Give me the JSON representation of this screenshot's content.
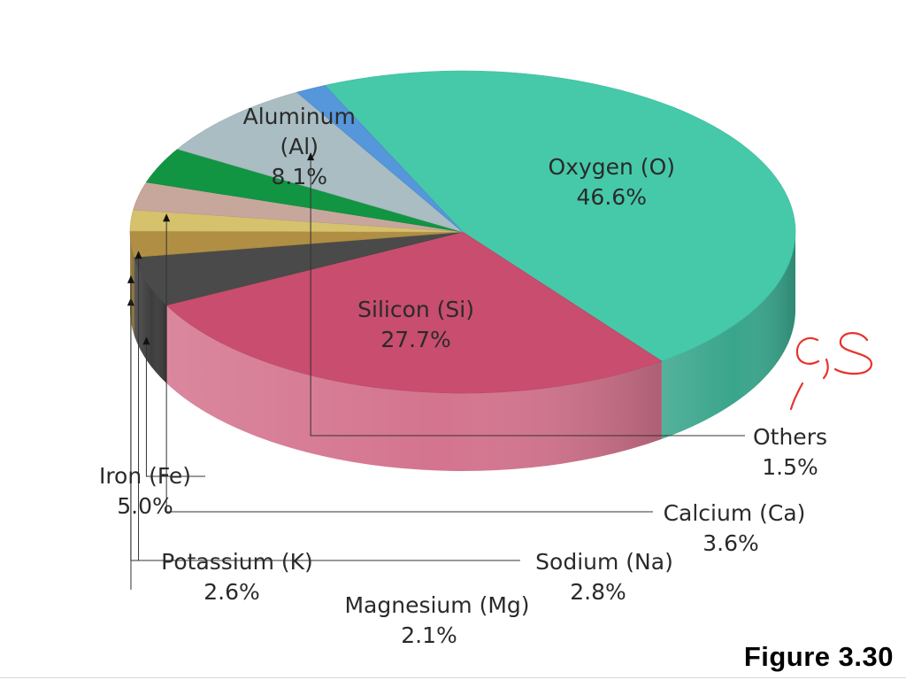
{
  "figure_caption": "Figure 3.30",
  "handwritten_note": "C, S",
  "colors": {
    "oxygen": "#45c9a9",
    "silicon": "#c84d6e",
    "iron": "#4a4a4a",
    "potassium": "#b08f44",
    "magnesium": "#d6c16c",
    "sodium": "#c7a79c",
    "calcium": "#119542",
    "aluminum": "#a9bdc2",
    "others": "#5696db",
    "annotation_ink": "#e8322b"
  },
  "chart_data": {
    "type": "pie",
    "title": "",
    "slices": [
      {
        "key": "oxygen",
        "label": "Oxygen (O)",
        "value": 46.6,
        "value_label": "46.6%"
      },
      {
        "key": "silicon",
        "label": "Silicon (Si)",
        "value": 27.7,
        "value_label": "27.7%"
      },
      {
        "key": "iron",
        "label": "Iron (Fe)",
        "value": 5.0,
        "value_label": "5.0%"
      },
      {
        "key": "potassium",
        "label": "Potassium (K)",
        "value": 2.6,
        "value_label": "2.6%"
      },
      {
        "key": "magnesium",
        "label": "Magnesium (Mg)",
        "value": 2.1,
        "value_label": "2.1%"
      },
      {
        "key": "sodium",
        "label": "Sodium (Na)",
        "value": 2.8,
        "value_label": "2.8%"
      },
      {
        "key": "calcium",
        "label": "Calcium (Ca)",
        "value": 3.6,
        "value_label": "3.6%"
      },
      {
        "key": "aluminum",
        "label": "Aluminum (Al)",
        "label_lines": [
          "Aluminum",
          "(Al)"
        ],
        "value": 8.1,
        "value_label": "8.1%"
      },
      {
        "key": "others",
        "label": "Others",
        "value": 1.5,
        "value_label": "1.5%"
      }
    ]
  }
}
